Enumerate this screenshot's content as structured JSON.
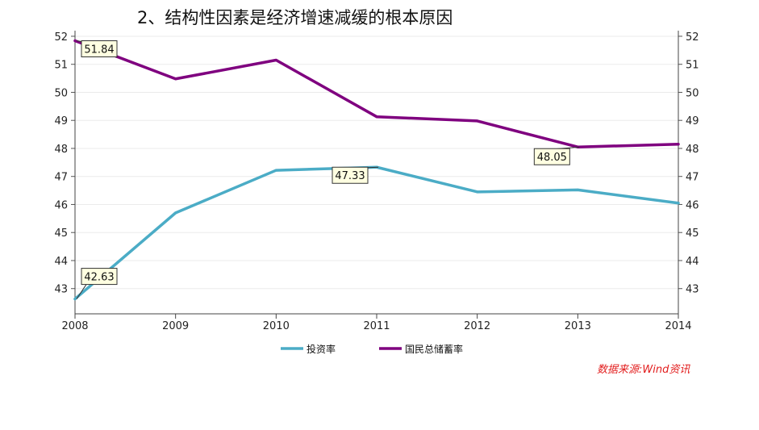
{
  "title": "2、结构性因素是经济增速减缓的根本原因",
  "source": "数据来源:Wind资讯",
  "chart_data": {
    "type": "line",
    "categories": [
      "2008",
      "2009",
      "2010",
      "2011",
      "2012",
      "2013",
      "2014"
    ],
    "series": [
      {
        "name": "投资率",
        "values": [
          42.63,
          45.7,
          47.22,
          47.33,
          46.45,
          46.52,
          46.05
        ],
        "color": "#4bacc6"
      },
      {
        "name": "国民总储蓄率",
        "values": [
          51.84,
          50.48,
          51.15,
          49.13,
          48.98,
          48.05,
          48.15
        ],
        "color": "#7f007f"
      }
    ],
    "y_ticks": [
      "43",
      "44",
      "45",
      "46",
      "47",
      "48",
      "49",
      "50",
      "51",
      "52"
    ],
    "ylim": [
      42.1,
      52.2
    ],
    "grid": true,
    "legend_position": "bottom",
    "data_labels": [
      {
        "series": 0,
        "index": 0,
        "text": "42.63"
      },
      {
        "series": 0,
        "index": 3,
        "text": "47.33"
      },
      {
        "series": 1,
        "index": 0,
        "text": "51.84"
      },
      {
        "series": 1,
        "index": 5,
        "text": "48.05"
      }
    ]
  }
}
